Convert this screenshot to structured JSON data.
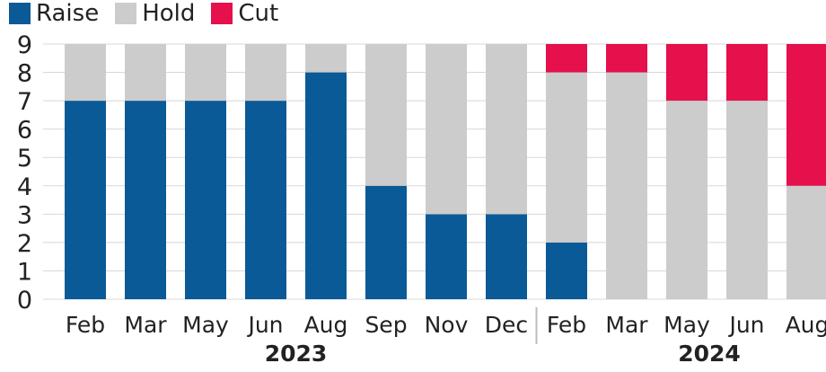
{
  "chart_data": {
    "type": "bar",
    "stacked": true,
    "categories": [
      "Feb",
      "Mar",
      "May",
      "Jun",
      "Aug",
      "Sep",
      "Nov",
      "Dec",
      "Feb",
      "Mar",
      "May",
      "Jun",
      "Aug"
    ],
    "groups": [
      {
        "label": "2023",
        "categories": [
          "Feb",
          "Mar",
          "May",
          "Jun",
          "Aug",
          "Sep",
          "Nov",
          "Dec"
        ]
      },
      {
        "label": "2024",
        "categories": [
          "Feb",
          "Mar",
          "May",
          "Jun",
          "Aug"
        ]
      }
    ],
    "series": [
      {
        "name": "Raise",
        "color": "#0a5a97",
        "values": [
          7,
          7,
          7,
          7,
          8,
          4,
          3,
          3,
          2,
          0,
          0,
          0,
          0
        ]
      },
      {
        "name": "Hold",
        "color": "#cccccc",
        "values": [
          2,
          2,
          2,
          2,
          1,
          5,
          6,
          6,
          6,
          8,
          7,
          7,
          4
        ]
      },
      {
        "name": "Cut",
        "color": "#e5104c",
        "values": [
          0,
          0,
          0,
          0,
          0,
          0,
          0,
          0,
          1,
          1,
          2,
          2,
          5
        ]
      }
    ],
    "ylim": [
      0,
      9
    ],
    "yticks": [
      "0",
      "1",
      "2",
      "3",
      "4",
      "5",
      "6",
      "7",
      "8",
      "9"
    ],
    "grid": true,
    "legend_position": "top-left"
  }
}
